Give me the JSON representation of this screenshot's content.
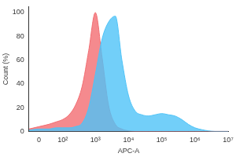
{
  "chart_data": {
    "type": "line",
    "x_label": "APC-A",
    "y_label": "Count (%)",
    "x": [
      -30,
      0,
      30,
      60,
      100,
      160,
      250,
      400,
      630,
      1000,
      1600,
      2500,
      4000,
      6300,
      10000,
      16000,
      25000,
      40000,
      63000,
      100000,
      160000,
      250000,
      400000,
      630000,
      1000000,
      1600000,
      2500000,
      4000000,
      10000000
    ],
    "series": [
      {
        "color": "#4fc3f7",
        "values": [
          1,
          2,
          2,
          3,
          3,
          3,
          4,
          7,
          20,
          48,
          78,
          92,
          97,
          60,
          30,
          17,
          14,
          13,
          14,
          15,
          14,
          13,
          10,
          6,
          3,
          1.5,
          0.5,
          0,
          0
        ]
      },
      {
        "color": "#f26d72",
        "values": [
          2,
          4,
          6,
          8,
          10,
          14,
          22,
          38,
          68,
          100,
          62,
          22,
          6,
          2,
          0.5,
          0,
          0,
          0,
          0,
          0,
          0,
          0,
          0,
          0,
          0,
          0,
          0,
          0,
          0
        ]
      }
    ],
    "xlim": [
      -30,
      10000000
    ],
    "xticks": [
      0,
      {
        "value": 100,
        "label": "10²"
      },
      {
        "value": 1000,
        "label": "10³"
      },
      {
        "value": 10000,
        "label": "10⁴"
      },
      {
        "value": 100000,
        "label": "10⁵"
      },
      {
        "value": 1000000,
        "label": "10⁶"
      },
      {
        "value": 10000000,
        "label": "10⁷"
      }
    ],
    "ylim": [
      0,
      105
    ],
    "yticks": [
      0,
      20,
      40,
      60,
      80,
      100
    ],
    "grid": false
  }
}
